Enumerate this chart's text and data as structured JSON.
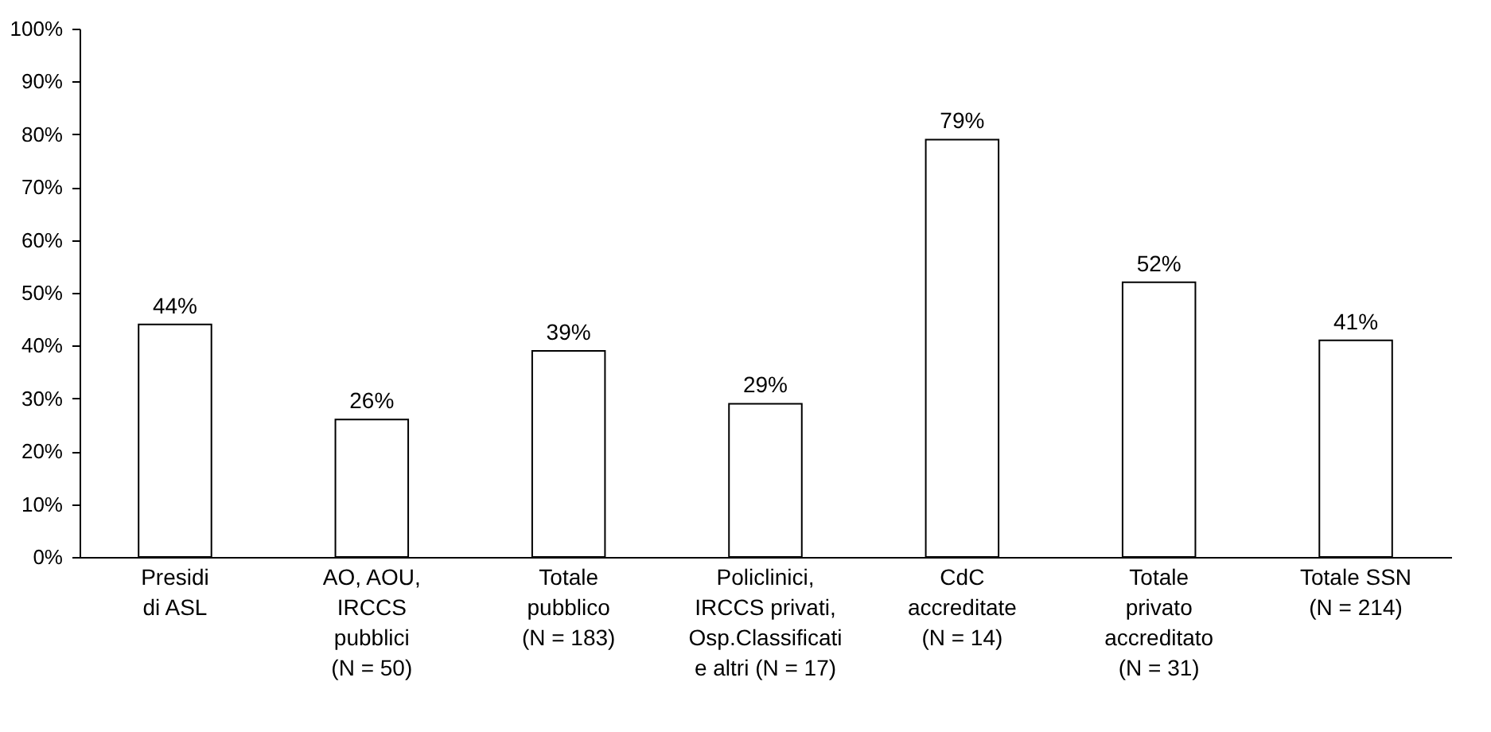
{
  "chart_data": {
    "type": "bar",
    "categories": [
      "Presidi\ndi ASL",
      "AO, AOU,\nIRCCS\npubblici\n(N = 50)",
      "Totale\npubblico\n(N = 183)",
      "Policlinici,\nIRCCS privati,\nOsp.Classificati\ne altri (N = 17)",
      "CdC\naccreditate\n(N = 14)",
      "Totale\nprivato\naccreditato\n(N = 31)",
      "Totale SSN\n(N = 214)"
    ],
    "values": [
      44,
      26,
      39,
      29,
      79,
      52,
      41
    ],
    "value_labels": [
      "44%",
      "26%",
      "39%",
      "29%",
      "79%",
      "52%",
      "41%"
    ],
    "color": "#ffffff",
    "ylim": [
      0,
      100
    ],
    "yticks": [
      {
        "value": 0,
        "label": "0%"
      },
      {
        "value": 10,
        "label": "10%"
      },
      {
        "value": 20,
        "label": "20%"
      },
      {
        "value": 30,
        "label": "30%"
      },
      {
        "value": 40,
        "label": "40%"
      },
      {
        "value": 50,
        "label": "50%"
      },
      {
        "value": 60,
        "label": "60%"
      },
      {
        "value": 70,
        "label": "70%"
      },
      {
        "value": 80,
        "label": "80%"
      },
      {
        "value": 90,
        "label": "90%"
      },
      {
        "value": 100,
        "label": "100%"
      }
    ],
    "grid": false
  }
}
